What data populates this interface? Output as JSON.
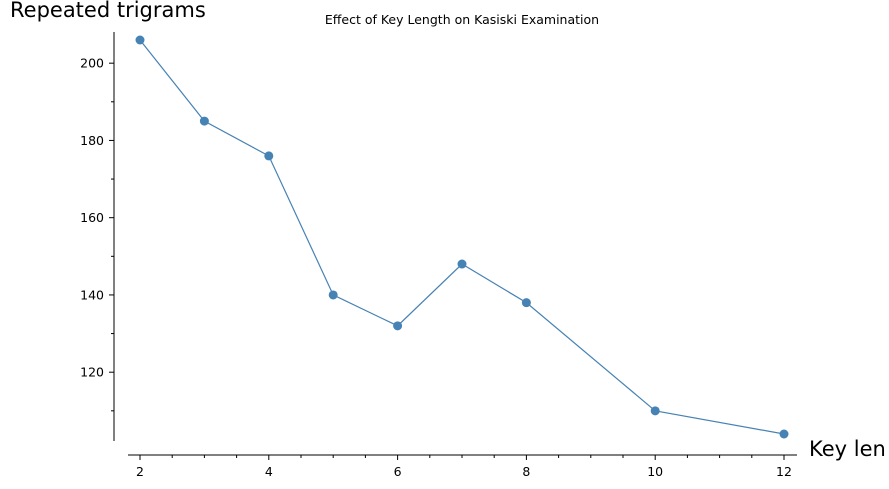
{
  "chart_data": {
    "type": "line",
    "title": "Effect of Key Length on Kasiski Examination",
    "xlabel": "Key len",
    "ylabel": "Repeated trigrams",
    "x": [
      2,
      3,
      4,
      5,
      6,
      7,
      8,
      10,
      12
    ],
    "series": [
      {
        "values": [
          206,
          185,
          176,
          140,
          132,
          148,
          138,
          110,
          104
        ]
      }
    ],
    "xlim": [
      1.8,
      12
    ],
    "ylim": [
      102,
      208
    ],
    "xticks": [
      2,
      4,
      6,
      8,
      10,
      12
    ],
    "yticks": [
      120,
      140,
      160,
      180,
      200
    ],
    "grid": false,
    "color": "#4682b4"
  }
}
